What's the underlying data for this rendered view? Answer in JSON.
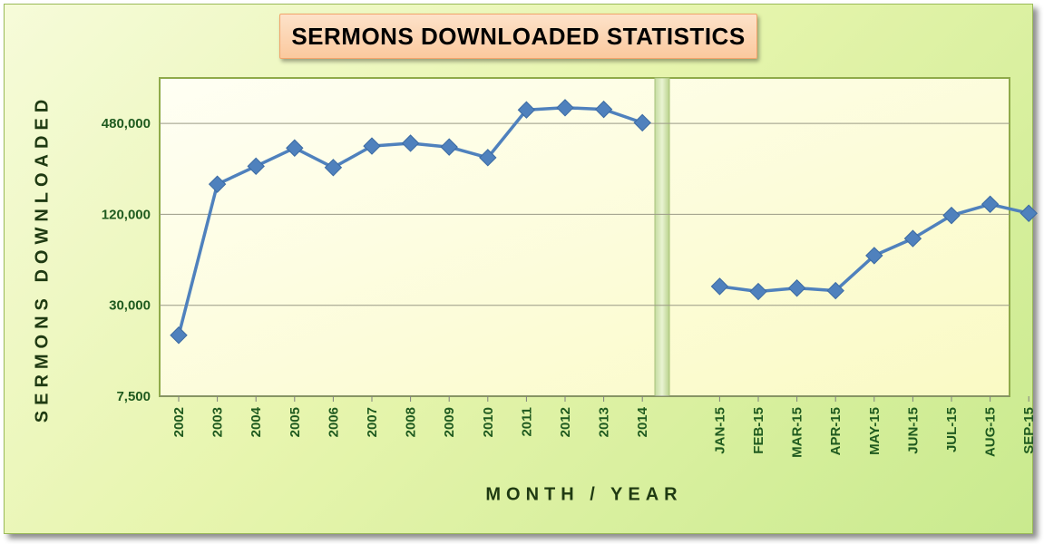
{
  "chart_data": {
    "type": "line",
    "title": "SERMONS DOWNLOADED STATISTICS",
    "xlabel": "MONTH / YEAR",
    "ylabel": "SERMONS DOWNLOADED",
    "y_scale": "log",
    "ylim": [
      7500,
      960000
    ],
    "y_ticks": [
      7500,
      30000,
      120000,
      480000
    ],
    "y_tick_labels": [
      "7,500",
      "30,000",
      "120,000",
      "480,000"
    ],
    "grid": true,
    "legend": "none",
    "series_color": "#4f81bd",
    "panels": [
      {
        "name": "years",
        "categories": [
          "2002",
          "2003",
          "2004",
          "2005",
          "2006",
          "2007",
          "2008",
          "2009",
          "2010",
          "2011",
          "2012",
          "2013",
          "2014"
        ],
        "values": [
          19000,
          190000,
          250000,
          330000,
          245000,
          340000,
          355000,
          335000,
          285000,
          590000,
          610000,
          595000,
          485000
        ]
      },
      {
        "name": "months",
        "categories": [
          "JAN-15",
          "FEB-15",
          "MAR-15",
          "APR-15",
          "MAY-15",
          "JUN-15",
          "JUL-15",
          "AUG-15",
          "SEP-15"
        ],
        "values": [
          40000,
          37000,
          39000,
          37500,
          64000,
          83000,
          118000,
          140000,
          122000
        ]
      }
    ]
  }
}
